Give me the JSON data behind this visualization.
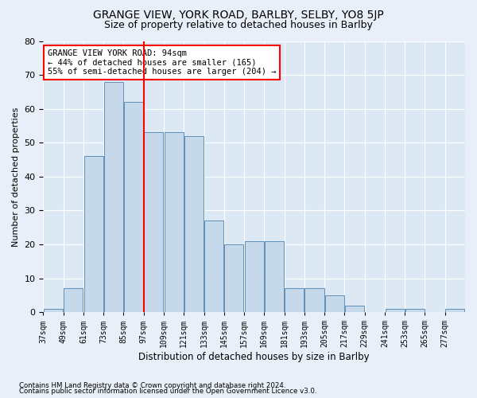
{
  "title1": "GRANGE VIEW, YORK ROAD, BARLBY, SELBY, YO8 5JP",
  "title2": "Size of property relative to detached houses in Barlby",
  "xlabel": "Distribution of detached houses by size in Barlby",
  "ylabel": "Number of detached properties",
  "footnote1": "Contains HM Land Registry data © Crown copyright and database right 2024.",
  "footnote2": "Contains public sector information licensed under the Open Government Licence v3.0.",
  "annotation_title": "GRANGE VIEW YORK ROAD: 94sqm",
  "annotation_line1": "← 44% of detached houses are smaller (165)",
  "annotation_line2": "55% of semi-detached houses are larger (204) →",
  "bar_color": "#c5d9ea",
  "bar_edge_color": "#6090b8",
  "ref_line_x": 97,
  "bin_edges": [
    37,
    49,
    61,
    73,
    85,
    97,
    109,
    121,
    133,
    145,
    157,
    169,
    181,
    193,
    205,
    217,
    229,
    241,
    253,
    265,
    277,
    289
  ],
  "tick_labels": [
    "37sqm",
    "49sqm",
    "61sqm",
    "73sqm",
    "85sqm",
    "97sqm",
    "109sqm",
    "121sqm",
    "133sqm",
    "145sqm",
    "157sqm",
    "169sqm",
    "181sqm",
    "193sqm",
    "205sqm",
    "217sqm",
    "229sqm",
    "241sqm",
    "253sqm",
    "265sqm",
    "277sqm"
  ],
  "values": [
    1,
    7,
    46,
    68,
    62,
    53,
    53,
    52,
    27,
    20,
    21,
    21,
    7,
    7,
    5,
    2,
    0,
    1,
    1,
    0,
    1
  ],
  "ylim": [
    0,
    80
  ],
  "yticks": [
    0,
    10,
    20,
    30,
    40,
    50,
    60,
    70,
    80
  ],
  "bg_color": "#e8eff8",
  "plot_bg_color": "#dce8f4",
  "grid_color": "#ffffff",
  "title1_fontsize": 10,
  "title2_fontsize": 9
}
